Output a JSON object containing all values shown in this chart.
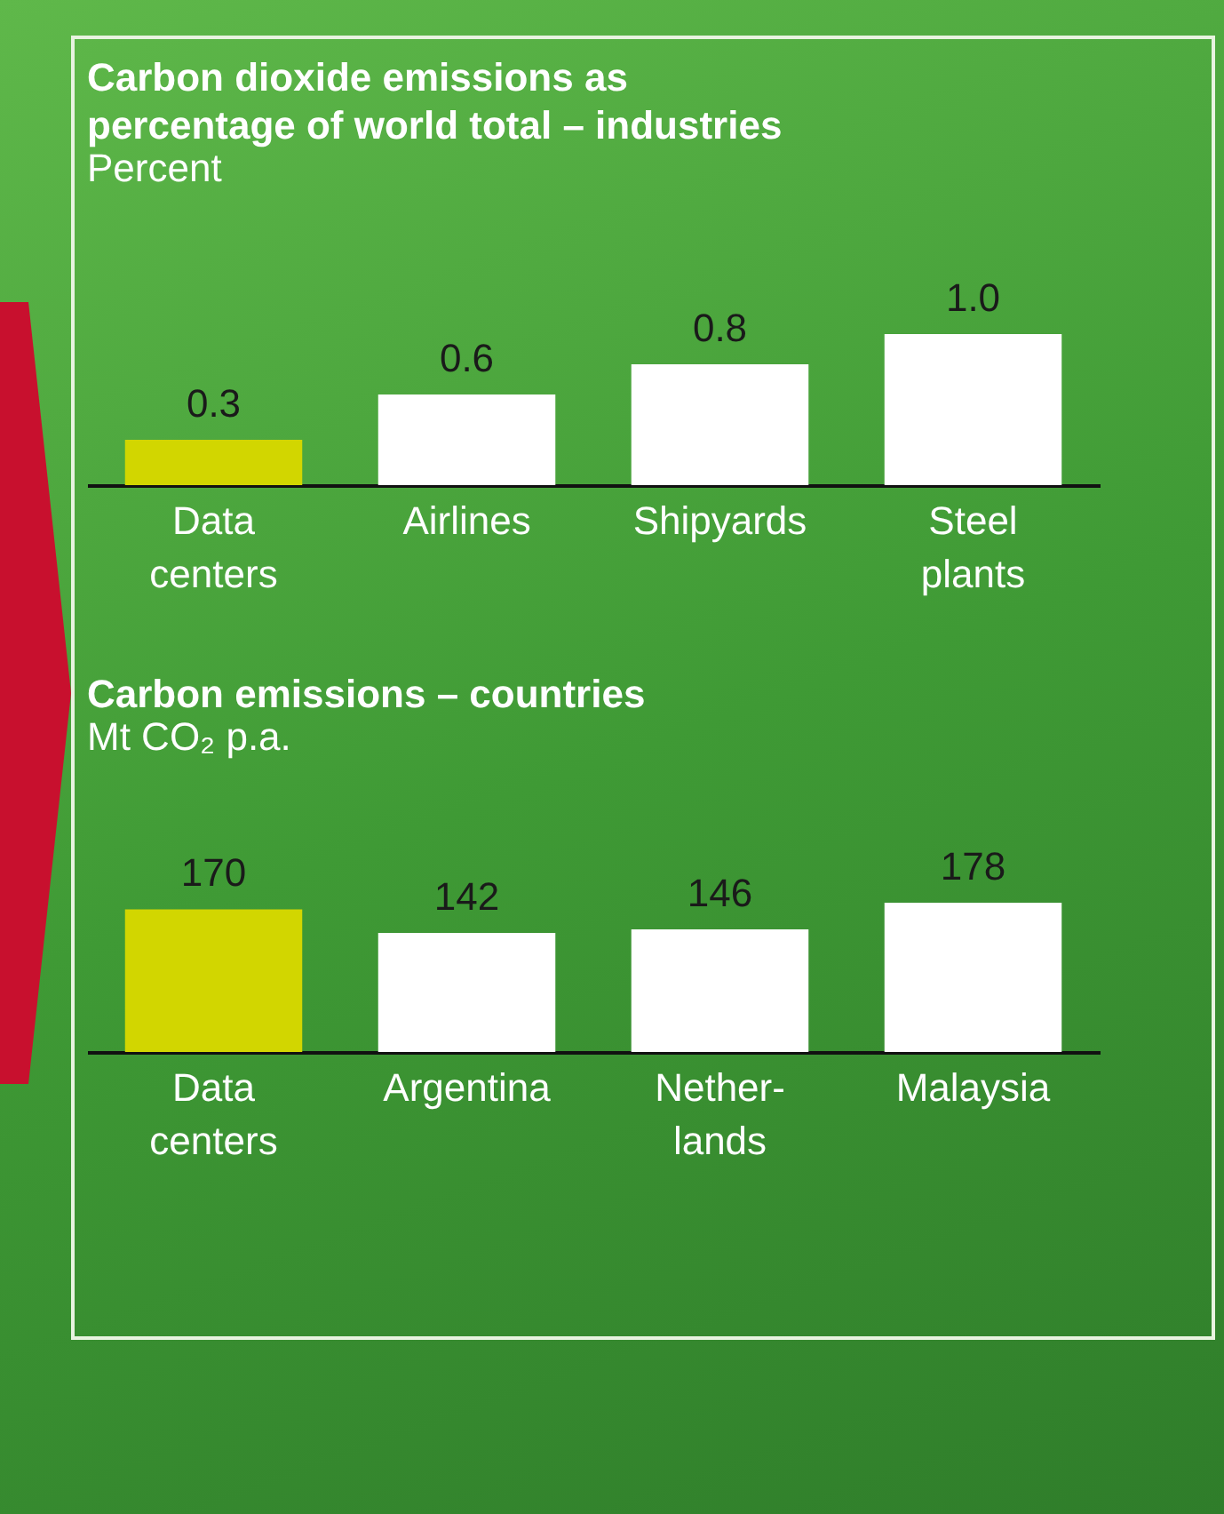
{
  "chart_data": [
    {
      "type": "bar",
      "title": "Carbon dioxide emissions as\npercentage of world total – industries",
      "subtitle": "Percent",
      "categories": [
        "Data\ncenters",
        "Airlines",
        "Shipyards",
        "Steel\nplants"
      ],
      "values": [
        0.3,
        0.6,
        0.8,
        1.0
      ],
      "colors": [
        "#d2d600",
        "#ffffff",
        "#ffffff",
        "#ffffff"
      ],
      "value_labels": [
        "0.3",
        "0.6",
        "0.8",
        "1.0"
      ]
    },
    {
      "type": "bar",
      "title": "Carbon emissions – countries",
      "subtitle": "Mt CO₂ p.a.",
      "categories": [
        "Data\ncenters",
        "Argentina",
        "Nether-\nlands",
        "Malaysia"
      ],
      "values": [
        170,
        142,
        146,
        178
      ],
      "colors": [
        "#d2d600",
        "#ffffff",
        "#ffffff",
        "#ffffff"
      ],
      "data_labels": true
    }
  ]
}
